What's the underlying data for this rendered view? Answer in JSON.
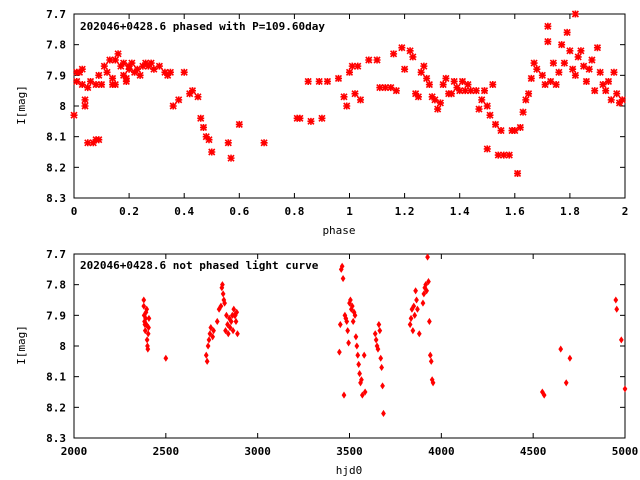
{
  "chart_data": [
    {
      "type": "scatter",
      "title": "202046+0428.6 phased with P=109.60day",
      "xlabel": "phase",
      "ylabel": "I[mag]",
      "xlim": [
        0,
        2
      ],
      "ylim": [
        7.7,
        8.3
      ],
      "y_inverted": true,
      "xticks": [
        "0",
        "0.2",
        "0.4",
        "0.6",
        "0.8",
        "1",
        "1.2",
        "1.4",
        "1.6",
        "1.8",
        "2"
      ],
      "yticks": [
        "7.7",
        "7.8",
        "7.9",
        "8",
        "8.1",
        "8.2",
        "8.3"
      ],
      "marker": "cross",
      "color": "#ff0000",
      "grid": false,
      "points": [
        [
          0.0,
          8.03
        ],
        [
          0.01,
          7.92
        ],
        [
          0.01,
          7.89
        ],
        [
          0.02,
          7.89
        ],
        [
          0.03,
          7.93
        ],
        [
          0.03,
          7.88
        ],
        [
          0.04,
          7.98
        ],
        [
          0.04,
          8.0
        ],
        [
          0.05,
          8.12
        ],
        [
          0.05,
          7.94
        ],
        [
          0.06,
          7.92
        ],
        [
          0.07,
          8.12
        ],
        [
          0.08,
          7.93
        ],
        [
          0.08,
          8.11
        ],
        [
          0.09,
          7.9
        ],
        [
          0.09,
          8.11
        ],
        [
          0.1,
          7.93
        ],
        [
          0.11,
          7.87
        ],
        [
          0.12,
          7.89
        ],
        [
          0.13,
          7.85
        ],
        [
          0.14,
          7.91
        ],
        [
          0.14,
          7.93
        ],
        [
          0.15,
          7.93
        ],
        [
          0.15,
          7.85
        ],
        [
          0.16,
          7.83
        ],
        [
          0.17,
          7.87
        ],
        [
          0.18,
          7.86
        ],
        [
          0.18,
          7.9
        ],
        [
          0.19,
          7.91
        ],
        [
          0.19,
          7.92
        ],
        [
          0.2,
          7.88
        ],
        [
          0.2,
          7.87
        ],
        [
          0.21,
          7.86
        ],
        [
          0.22,
          7.89
        ],
        [
          0.23,
          7.88
        ],
        [
          0.24,
          7.9
        ],
        [
          0.25,
          7.87
        ],
        [
          0.26,
          7.86
        ],
        [
          0.27,
          7.87
        ],
        [
          0.28,
          7.86
        ],
        [
          0.29,
          7.88
        ],
        [
          0.31,
          7.87
        ],
        [
          0.33,
          7.89
        ],
        [
          0.34,
          7.9
        ],
        [
          0.35,
          7.89
        ],
        [
          0.36,
          8.0
        ],
        [
          0.38,
          7.98
        ],
        [
          0.4,
          7.89
        ],
        [
          0.42,
          7.96
        ],
        [
          0.43,
          7.95
        ],
        [
          0.45,
          7.97
        ],
        [
          0.46,
          8.04
        ],
        [
          0.47,
          8.07
        ],
        [
          0.48,
          8.1
        ],
        [
          0.49,
          8.11
        ],
        [
          0.5,
          8.15
        ],
        [
          0.56,
          8.12
        ],
        [
          0.57,
          8.17
        ],
        [
          0.6,
          8.06
        ],
        [
          0.69,
          8.12
        ],
        [
          0.81,
          8.04
        ],
        [
          0.82,
          8.04
        ],
        [
          0.85,
          7.92
        ],
        [
          0.86,
          8.05
        ],
        [
          0.89,
          7.92
        ],
        [
          0.9,
          8.04
        ],
        [
          0.92,
          7.92
        ],
        [
          0.96,
          7.91
        ],
        [
          0.98,
          7.97
        ],
        [
          0.99,
          8.0
        ],
        [
          1.0,
          7.89
        ],
        [
          1.01,
          7.87
        ],
        [
          1.02,
          7.96
        ],
        [
          1.03,
          7.87
        ],
        [
          1.04,
          7.98
        ],
        [
          1.07,
          7.85
        ],
        [
          1.1,
          7.85
        ],
        [
          1.11,
          7.94
        ],
        [
          1.13,
          7.94
        ],
        [
          1.15,
          7.94
        ],
        [
          1.16,
          7.83
        ],
        [
          1.17,
          7.95
        ],
        [
          1.19,
          7.81
        ],
        [
          1.2,
          7.88
        ],
        [
          1.22,
          7.82
        ],
        [
          1.23,
          7.84
        ],
        [
          1.24,
          7.96
        ],
        [
          1.25,
          7.97
        ],
        [
          1.26,
          7.89
        ],
        [
          1.27,
          7.87
        ],
        [
          1.28,
          7.91
        ],
        [
          1.29,
          7.93
        ],
        [
          1.3,
          7.97
        ],
        [
          1.31,
          7.98
        ],
        [
          1.32,
          8.01
        ],
        [
          1.33,
          7.99
        ],
        [
          1.34,
          7.93
        ],
        [
          1.35,
          7.91
        ],
        [
          1.36,
          7.96
        ],
        [
          1.37,
          7.96
        ],
        [
          1.38,
          7.92
        ],
        [
          1.39,
          7.94
        ],
        [
          1.4,
          7.95
        ],
        [
          1.41,
          7.92
        ],
        [
          1.42,
          7.95
        ],
        [
          1.43,
          7.93
        ],
        [
          1.44,
          7.95
        ],
        [
          1.46,
          7.95
        ],
        [
          1.47,
          8.01
        ],
        [
          1.48,
          7.98
        ],
        [
          1.49,
          7.95
        ],
        [
          1.5,
          8.0
        ],
        [
          1.5,
          8.14
        ],
        [
          1.51,
          8.03
        ],
        [
          1.52,
          7.93
        ],
        [
          1.53,
          8.06
        ],
        [
          1.54,
          8.16
        ],
        [
          1.55,
          8.08
        ],
        [
          1.56,
          8.16
        ],
        [
          1.58,
          8.16
        ],
        [
          1.59,
          8.08
        ],
        [
          1.6,
          8.08
        ],
        [
          1.61,
          8.22
        ],
        [
          1.62,
          8.07
        ],
        [
          1.63,
          8.02
        ],
        [
          1.64,
          7.98
        ],
        [
          1.65,
          7.96
        ],
        [
          1.66,
          7.91
        ],
        [
          1.67,
          7.86
        ],
        [
          1.68,
          7.88
        ],
        [
          1.7,
          7.9
        ],
        [
          1.71,
          7.93
        ],
        [
          1.72,
          7.79
        ],
        [
          1.72,
          7.74
        ],
        [
          1.73,
          7.92
        ],
        [
          1.74,
          7.86
        ],
        [
          1.75,
          7.93
        ],
        [
          1.76,
          7.89
        ],
        [
          1.77,
          7.8
        ],
        [
          1.78,
          7.86
        ],
        [
          1.79,
          7.76
        ],
        [
          1.8,
          7.82
        ],
        [
          1.81,
          7.88
        ],
        [
          1.82,
          7.7
        ],
        [
          1.82,
          7.9
        ],
        [
          1.83,
          7.84
        ],
        [
          1.84,
          7.82
        ],
        [
          1.85,
          7.87
        ],
        [
          1.86,
          7.92
        ],
        [
          1.87,
          7.88
        ],
        [
          1.88,
          7.85
        ],
        [
          1.89,
          7.95
        ],
        [
          1.9,
          7.81
        ],
        [
          1.91,
          7.89
        ],
        [
          1.92,
          7.93
        ],
        [
          1.93,
          7.95
        ],
        [
          1.94,
          7.92
        ],
        [
          1.95,
          7.98
        ],
        [
          1.96,
          7.89
        ],
        [
          1.97,
          7.96
        ],
        [
          1.98,
          7.99
        ],
        [
          1.99,
          7.98
        ]
      ]
    },
    {
      "type": "scatter",
      "title": "202046+0428.6 not phased light curve",
      "xlabel": "hjd0",
      "ylabel": "I[mag]",
      "xlim": [
        2000,
        5000
      ],
      "ylim": [
        7.7,
        8.3
      ],
      "y_inverted": true,
      "xticks": [
        "2000",
        "2500",
        "3000",
        "3500",
        "4000",
        "4500",
        "5000"
      ],
      "yticks": [
        "7.7",
        "7.8",
        "7.9",
        "8",
        "8.1",
        "8.2",
        "8.3"
      ],
      "marker": "diamond",
      "color": "#ff0000",
      "grid": false,
      "points": [
        [
          2380,
          7.85
        ],
        [
          2380,
          7.87
        ],
        [
          2382,
          7.9
        ],
        [
          2384,
          7.92
        ],
        [
          2386,
          7.93
        ],
        [
          2388,
          7.95
        ],
        [
          2390,
          7.91
        ],
        [
          2392,
          7.89
        ],
        [
          2394,
          7.93
        ],
        [
          2396,
          7.88
        ],
        [
          2398,
          7.98
        ],
        [
          2400,
          8.0
        ],
        [
          2402,
          8.01
        ],
        [
          2404,
          7.96
        ],
        [
          2406,
          7.94
        ],
        [
          2408,
          7.91
        ],
        [
          2500,
          8.04
        ],
        [
          2720,
          8.03
        ],
        [
          2725,
          8.05
        ],
        [
          2730,
          8.0
        ],
        [
          2735,
          7.98
        ],
        [
          2740,
          7.96
        ],
        [
          2745,
          7.94
        ],
        [
          2755,
          7.97
        ],
        [
          2760,
          7.95
        ],
        [
          2780,
          7.92
        ],
        [
          2790,
          7.88
        ],
        [
          2800,
          7.87
        ],
        [
          2805,
          7.81
        ],
        [
          2808,
          7.8
        ],
        [
          2812,
          7.83
        ],
        [
          2816,
          7.85
        ],
        [
          2820,
          7.86
        ],
        [
          2825,
          7.95
        ],
        [
          2830,
          7.9
        ],
        [
          2836,
          7.93
        ],
        [
          2840,
          7.96
        ],
        [
          2846,
          7.91
        ],
        [
          2850,
          7.94
        ],
        [
          2856,
          7.92
        ],
        [
          2862,
          7.9
        ],
        [
          2866,
          7.95
        ],
        [
          2870,
          7.88
        ],
        [
          2874,
          7.9
        ],
        [
          2878,
          7.9
        ],
        [
          2882,
          7.92
        ],
        [
          2886,
          7.89
        ],
        [
          2890,
          7.96
        ],
        [
          3445,
          8.02
        ],
        [
          3450,
          7.93
        ],
        [
          3455,
          7.75
        ],
        [
          3460,
          7.74
        ],
        [
          3465,
          7.78
        ],
        [
          3470,
          8.16
        ],
        [
          3475,
          7.9
        ],
        [
          3480,
          7.91
        ],
        [
          3485,
          7.92
        ],
        [
          3490,
          7.95
        ],
        [
          3495,
          7.99
        ],
        [
          3500,
          7.86
        ],
        [
          3505,
          7.85
        ],
        [
          3510,
          7.88
        ],
        [
          3515,
          7.87
        ],
        [
          3520,
          7.92
        ],
        [
          3525,
          7.89
        ],
        [
          3530,
          7.9
        ],
        [
          3535,
          7.97
        ],
        [
          3540,
          8.0
        ],
        [
          3545,
          8.03
        ],
        [
          3550,
          8.06
        ],
        [
          3555,
          8.09
        ],
        [
          3560,
          8.12
        ],
        [
          3565,
          8.11
        ],
        [
          3570,
          8.16
        ],
        [
          3580,
          8.03
        ],
        [
          3585,
          8.15
        ],
        [
          3640,
          7.96
        ],
        [
          3645,
          7.98
        ],
        [
          3650,
          8.0
        ],
        [
          3655,
          8.01
        ],
        [
          3660,
          7.93
        ],
        [
          3665,
          7.95
        ],
        [
          3670,
          8.04
        ],
        [
          3675,
          8.07
        ],
        [
          3680,
          8.13
        ],
        [
          3685,
          8.22
        ],
        [
          3830,
          7.93
        ],
        [
          3835,
          7.91
        ],
        [
          3840,
          7.88
        ],
        [
          3845,
          7.95
        ],
        [
          3850,
          7.87
        ],
        [
          3855,
          7.9
        ],
        [
          3860,
          7.82
        ],
        [
          3865,
          7.85
        ],
        [
          3870,
          7.88
        ],
        [
          3880,
          7.96
        ],
        [
          3900,
          7.86
        ],
        [
          3905,
          7.83
        ],
        [
          3910,
          7.81
        ],
        [
          3915,
          7.8
        ],
        [
          3920,
          7.82
        ],
        [
          3925,
          7.71
        ],
        [
          3930,
          7.79
        ],
        [
          3935,
          7.92
        ],
        [
          3940,
          8.03
        ],
        [
          3945,
          8.05
        ],
        [
          3950,
          8.11
        ],
        [
          3955,
          8.12
        ],
        [
          4550,
          8.15
        ],
        [
          4560,
          8.16
        ],
        [
          4650,
          8.01
        ],
        [
          4680,
          8.12
        ],
        [
          4700,
          8.04
        ],
        [
          4950,
          7.85
        ],
        [
          4955,
          7.88
        ],
        [
          4980,
          7.98
        ],
        [
          5000,
          8.14
        ]
      ]
    }
  ]
}
